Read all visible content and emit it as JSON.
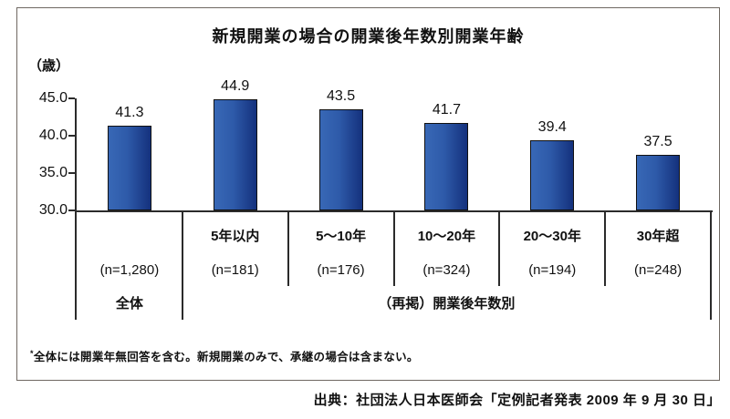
{
  "chart_data": {
    "type": "bar",
    "title": "新規開業の場合の開業後年数別開業年齢",
    "unit_label": "（歳）",
    "ylabel": "歳",
    "ylim": [
      30.0,
      45.0
    ],
    "ytick_step": 5.0,
    "ytick_labels": [
      "30.0",
      "35.0",
      "40.0",
      "45.0"
    ],
    "grid": false,
    "legend": "none",
    "categories": [
      "全体",
      "5年以内",
      "5～10年",
      "10～20年",
      "20～30年",
      "30年超"
    ],
    "column_top_labels": [
      "",
      "5年以内",
      "5～10年",
      "10～20年",
      "20～30年",
      "30年超"
    ],
    "n_labels": [
      "(n=1,280)",
      "(n=181)",
      "(n=176)",
      "(n=324)",
      "(n=194)",
      "(n=248)"
    ],
    "values": [
      41.3,
      44.9,
      43.5,
      41.7,
      39.4,
      37.5
    ],
    "value_labels": [
      "41.3",
      "44.9",
      "43.5",
      "41.7",
      "39.4",
      "37.5"
    ],
    "group_label_first": "全体",
    "group_label_rest": "（再掲）開業後年数別",
    "bar_color_start": "#3868b6",
    "bar_color_end": "#14317d",
    "bar_border_color": "#111111"
  },
  "footnote": {
    "mark": "*",
    "text": "全体には開業年無回答を含む。新規開業のみで、承継の場合は含まない。"
  },
  "source": "出典：社団法人日本医師会「定例記者発表 2009 年 9 月 30 日」"
}
